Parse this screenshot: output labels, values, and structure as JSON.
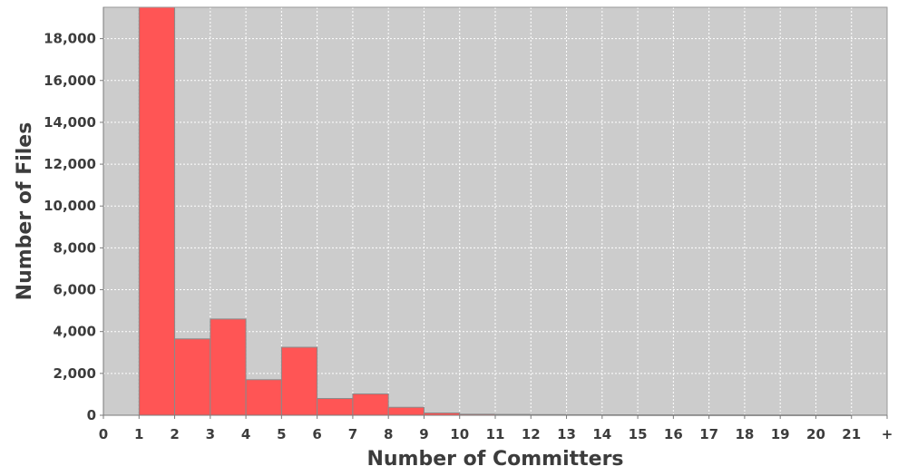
{
  "chart_data": {
    "type": "bar",
    "xlabel": "Number of Committers",
    "ylabel": "Number of Files",
    "x_tick_labels": [
      "0",
      "1",
      "2",
      "3",
      "4",
      "5",
      "6",
      "7",
      "8",
      "9",
      "10",
      "11",
      "12",
      "13",
      "14",
      "15",
      "16",
      "17",
      "18",
      "19",
      "20",
      "21",
      "+"
    ],
    "y_tick_labels": [
      "0",
      "2,000",
      "4,000",
      "6,000",
      "8,000",
      "10,000",
      "12,000",
      "14,000",
      "16,000",
      "18,000"
    ],
    "y_ticks": [
      0,
      2000,
      4000,
      6000,
      8000,
      10000,
      12000,
      14000,
      16000,
      18000
    ],
    "ylim": [
      0,
      19500
    ],
    "bins": [
      {
        "from": 1,
        "to": 2,
        "value": 19500
      },
      {
        "from": 2,
        "to": 3,
        "value": 3650
      },
      {
        "from": 3,
        "to": 4,
        "value": 4600
      },
      {
        "from": 4,
        "to": 5,
        "value": 1700
      },
      {
        "from": 5,
        "to": 6,
        "value": 3250
      },
      {
        "from": 6,
        "to": 7,
        "value": 800
      },
      {
        "from": 7,
        "to": 8,
        "value": 1020
      },
      {
        "from": 8,
        "to": 9,
        "value": 380
      },
      {
        "from": 9,
        "to": 10,
        "value": 110
      },
      {
        "from": 10,
        "to": 11,
        "value": 50
      },
      {
        "from": 11,
        "to": 12,
        "value": 40
      },
      {
        "from": 12,
        "to": 13,
        "value": 30
      },
      {
        "from": 13,
        "to": 14,
        "value": 25
      },
      {
        "from": 14,
        "to": 15,
        "value": 20
      },
      {
        "from": 15,
        "to": 16,
        "value": 15
      },
      {
        "from": 16,
        "to": 17,
        "value": 15
      },
      {
        "from": 17,
        "to": 18,
        "value": 12
      },
      {
        "from": 18,
        "to": 19,
        "value": 10
      },
      {
        "from": 19,
        "to": 20,
        "value": 10
      },
      {
        "from": 20,
        "to": 21,
        "value": 8
      }
    ],
    "bar_color": "#ff5555",
    "bar_edge_color": "#8a8a8a",
    "plot_background": "#cccccc",
    "grid": true,
    "grid_color": "#ffffff"
  }
}
